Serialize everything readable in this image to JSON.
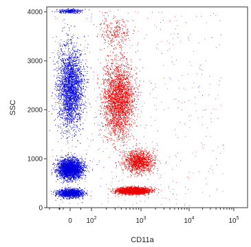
{
  "chart_data": {
    "type": "scatter",
    "xlabel": "CD11a",
    "ylabel": "SSC",
    "x_scale": "biexponential",
    "ylim": [
      0,
      4100
    ],
    "grid": false,
    "legend": "none",
    "x_tick_labels": [
      {
        "base": "0",
        "exp": ""
      },
      {
        "base": "10",
        "exp": "2"
      },
      {
        "base": "10",
        "exp": "3"
      },
      {
        "base": "10",
        "exp": "4"
      },
      {
        "base": "10",
        "exp": "5"
      }
    ],
    "x_tick_values": [
      0,
      100,
      1000,
      10000,
      100000
    ],
    "y_ticks": [
      0,
      1000,
      2000,
      3000,
      4000
    ],
    "y_tick_labels": [
      "0",
      "1000",
      "2000",
      "3000",
      "4000"
    ],
    "series": [
      {
        "color": "#0000dd",
        "clusters": [
          {
            "x_center": 0,
            "y_center": 2450,
            "y_spread": 750,
            "density": "high"
          },
          {
            "x_center": 0,
            "y_center": 800,
            "y_spread": 180,
            "density": "high"
          },
          {
            "x_center": 0,
            "y_center": 300,
            "y_spread": 80,
            "density": "medium"
          },
          {
            "x_center": 0,
            "y_center": 4020,
            "y_spread": 40,
            "density": "low"
          }
        ]
      },
      {
        "color": "#ee0000",
        "clusters": [
          {
            "x_center": 350,
            "y_center": 2200,
            "y_spread": 700,
            "density": "high"
          },
          {
            "x_center": 900,
            "y_center": 950,
            "y_spread": 200,
            "density": "medium"
          },
          {
            "x_center": 700,
            "y_center": 350,
            "y_spread": 60,
            "density": "high"
          },
          {
            "x_center": 300,
            "y_center": 3600,
            "y_spread": 300,
            "density": "low"
          }
        ]
      }
    ]
  }
}
